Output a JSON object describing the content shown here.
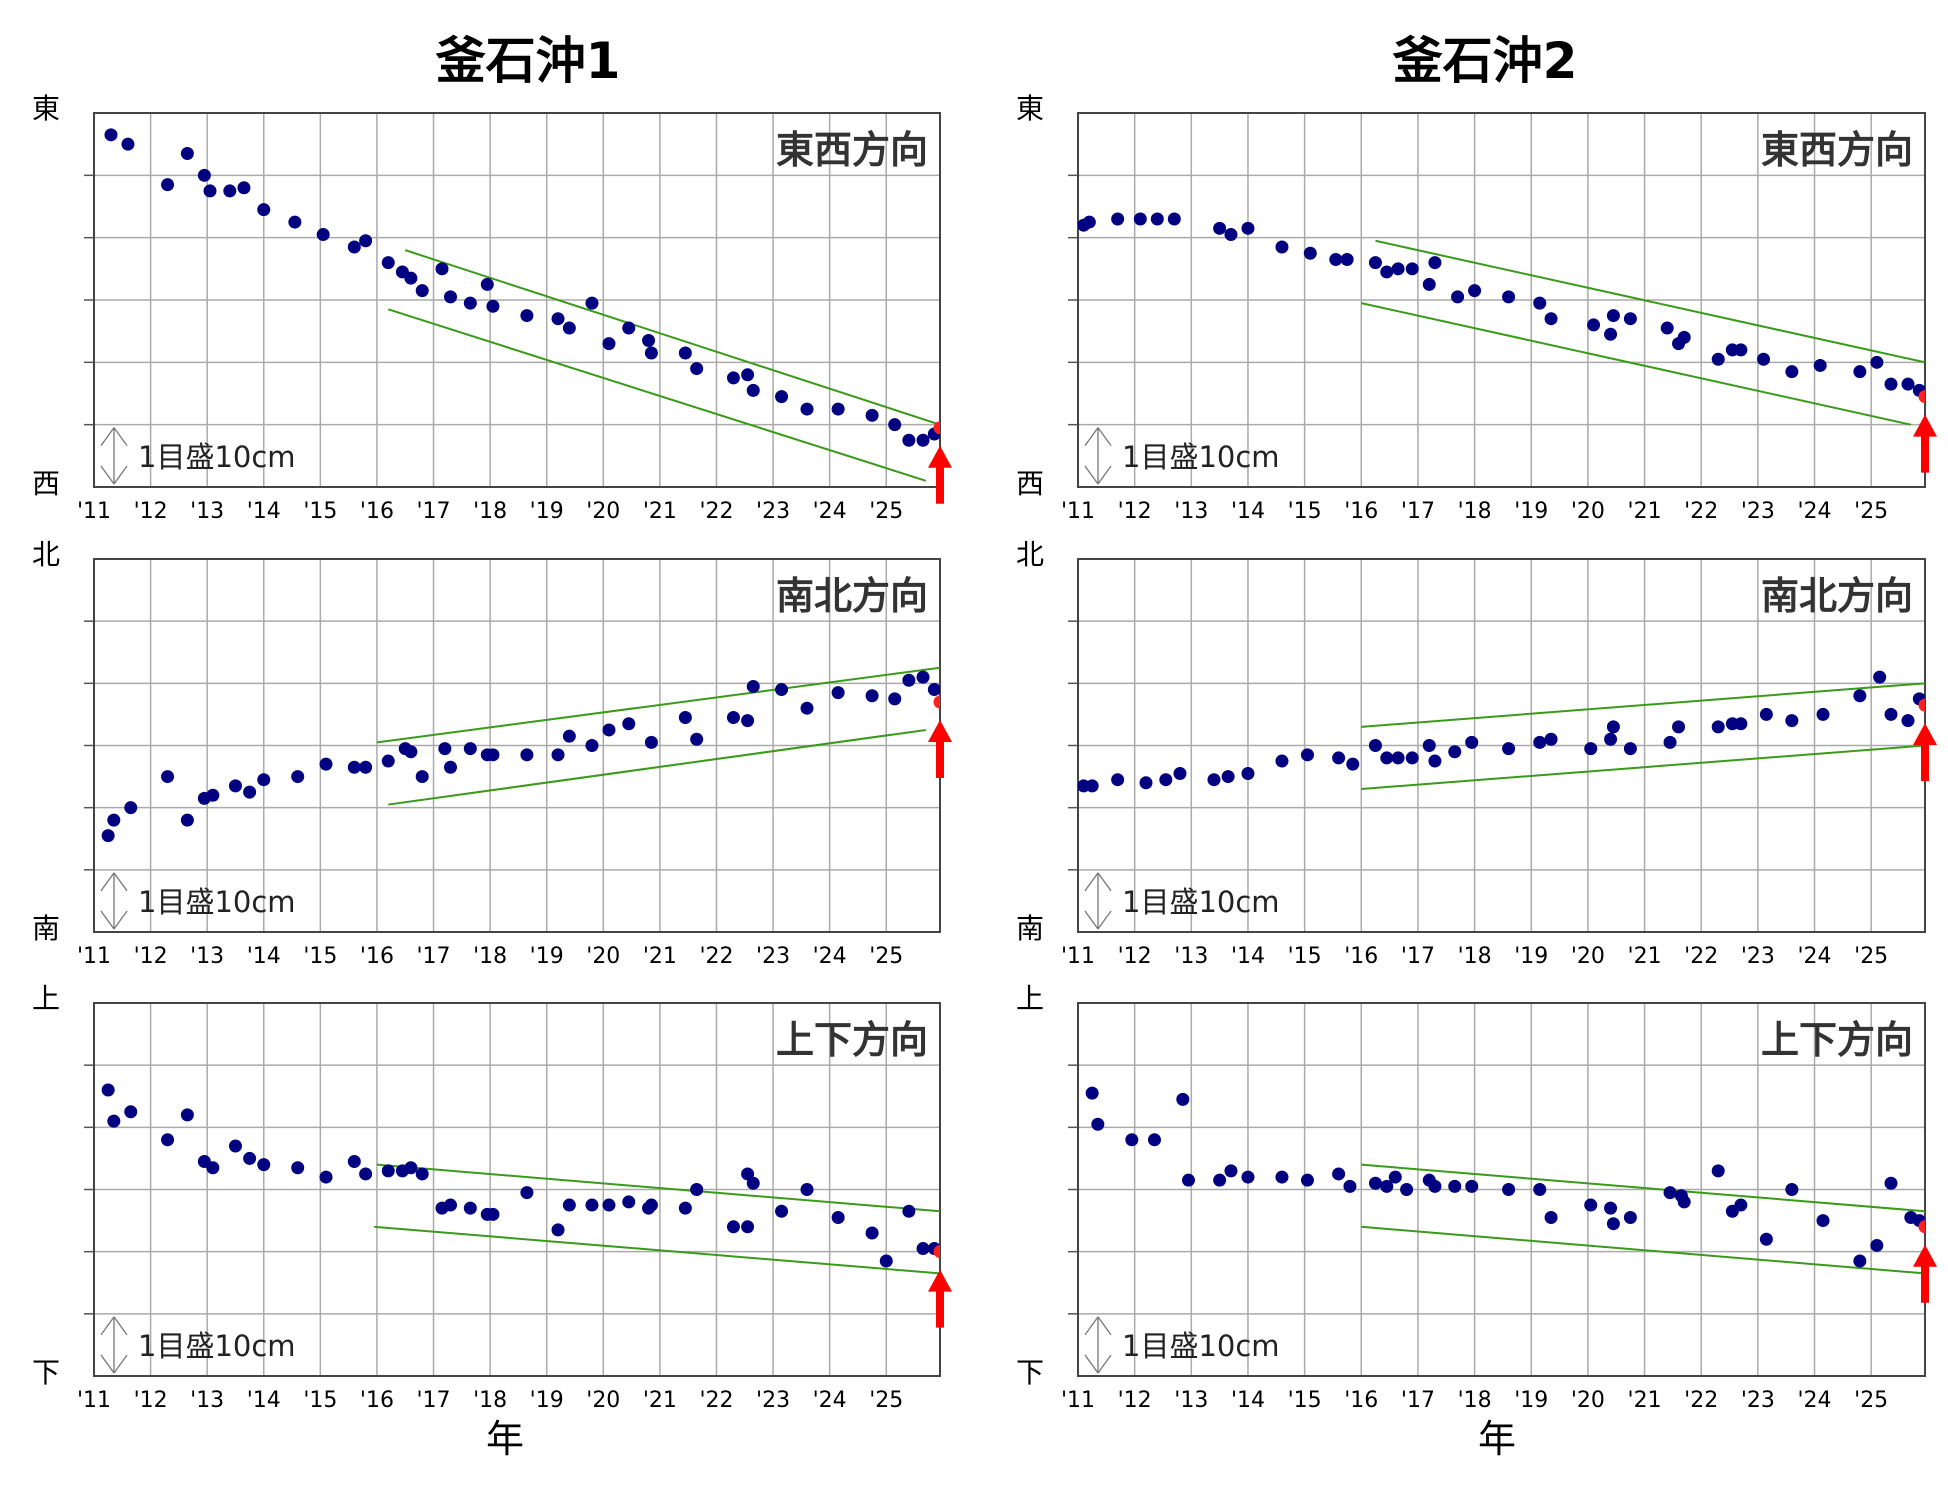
{
  "figure": {
    "year_label": "年",
    "scale_label": "1目盛10cm",
    "colors": {
      "marker": "#000080",
      "latest": "#ff2020",
      "trend": "#3a9a1a",
      "grid": "#aaaaaa",
      "arrow": "#ff0000"
    }
  },
  "chart_data": [
    {
      "type": "scatter",
      "station": "釜石沖1",
      "component": "東西方向",
      "x_ticks": [
        "'11",
        "'12",
        "'13",
        "'14",
        "'15",
        "'16",
        "'17",
        "'18",
        "'19",
        "'20",
        "'21",
        "'22",
        "'23",
        "'24",
        "'25"
      ],
      "x_range": [
        2011.0,
        2025.95
      ],
      "y_range": [
        0,
        6
      ],
      "y_top": "東",
      "y_bottom": "西",
      "points": [
        [
          2011.3,
          5.65
        ],
        [
          2011.6,
          5.5
        ],
        [
          2012.3,
          4.85
        ],
        [
          2012.65,
          5.35
        ],
        [
          2012.95,
          5.0
        ],
        [
          2013.05,
          4.75
        ],
        [
          2013.4,
          4.75
        ],
        [
          2013.65,
          4.8
        ],
        [
          2014.0,
          4.45
        ],
        [
          2014.55,
          4.25
        ],
        [
          2015.05,
          4.05
        ],
        [
          2015.6,
          3.85
        ],
        [
          2015.8,
          3.95
        ],
        [
          2016.2,
          3.6
        ],
        [
          2016.45,
          3.45
        ],
        [
          2016.6,
          3.35
        ],
        [
          2016.8,
          3.15
        ],
        [
          2017.15,
          3.5
        ],
        [
          2017.3,
          3.05
        ],
        [
          2017.65,
          2.95
        ],
        [
          2017.95,
          3.25
        ],
        [
          2018.05,
          2.9
        ],
        [
          2018.65,
          2.75
        ],
        [
          2019.2,
          2.7
        ],
        [
          2019.4,
          2.55
        ],
        [
          2019.8,
          2.95
        ],
        [
          2020.1,
          2.3
        ],
        [
          2020.45,
          2.55
        ],
        [
          2020.8,
          2.35
        ],
        [
          2020.85,
          2.15
        ],
        [
          2021.45,
          2.15
        ],
        [
          2021.65,
          1.9
        ],
        [
          2022.3,
          1.75
        ],
        [
          2022.55,
          1.8
        ],
        [
          2022.65,
          1.55
        ],
        [
          2023.15,
          1.45
        ],
        [
          2023.6,
          1.25
        ],
        [
          2024.15,
          1.25
        ],
        [
          2024.75,
          1.15
        ],
        [
          2025.15,
          1.0
        ],
        [
          2025.4,
          0.75
        ],
        [
          2025.65,
          0.75
        ],
        [
          2025.85,
          0.85
        ]
      ],
      "latest": [
        2025.95,
        0.95
      ],
      "trend_lines": [
        [
          [
            2016.5,
            3.8
          ],
          [
            2025.95,
            1.0
          ]
        ],
        [
          [
            2016.2,
            2.85
          ],
          [
            2025.7,
            0.1
          ]
        ]
      ]
    },
    {
      "type": "scatter",
      "station": "釜石沖2",
      "component": "東西方向",
      "x_ticks": [
        "'11",
        "'12",
        "'13",
        "'14",
        "'15",
        "'16",
        "'17",
        "'18",
        "'19",
        "'20",
        "'21",
        "'22",
        "'23",
        "'24",
        "'25"
      ],
      "x_range": [
        2011.0,
        2025.95
      ],
      "y_range": [
        0,
        6
      ],
      "y_top": "東",
      "y_bottom": "西",
      "points": [
        [
          2011.1,
          4.2
        ],
        [
          2011.2,
          4.25
        ],
        [
          2011.7,
          4.3
        ],
        [
          2012.1,
          4.3
        ],
        [
          2012.4,
          4.3
        ],
        [
          2012.7,
          4.3
        ],
        [
          2013.5,
          4.15
        ],
        [
          2013.7,
          4.05
        ],
        [
          2014.0,
          4.15
        ],
        [
          2014.6,
          3.85
        ],
        [
          2015.1,
          3.75
        ],
        [
          2015.55,
          3.65
        ],
        [
          2015.75,
          3.65
        ],
        [
          2016.25,
          3.6
        ],
        [
          2016.45,
          3.45
        ],
        [
          2016.65,
          3.5
        ],
        [
          2016.9,
          3.5
        ],
        [
          2017.2,
          3.25
        ],
        [
          2017.3,
          3.6
        ],
        [
          2017.7,
          3.05
        ],
        [
          2018.0,
          3.15
        ],
        [
          2018.6,
          3.05
        ],
        [
          2019.15,
          2.95
        ],
        [
          2019.35,
          2.7
        ],
        [
          2020.1,
          2.6
        ],
        [
          2020.4,
          2.45
        ],
        [
          2020.45,
          2.75
        ],
        [
          2020.75,
          2.7
        ],
        [
          2021.4,
          2.55
        ],
        [
          2021.6,
          2.3
        ],
        [
          2021.7,
          2.4
        ],
        [
          2022.3,
          2.05
        ],
        [
          2022.55,
          2.2
        ],
        [
          2022.7,
          2.2
        ],
        [
          2023.1,
          2.05
        ],
        [
          2023.6,
          1.85
        ],
        [
          2024.1,
          1.95
        ],
        [
          2024.8,
          1.85
        ],
        [
          2025.1,
          2.0
        ],
        [
          2025.35,
          1.65
        ],
        [
          2025.65,
          1.65
        ],
        [
          2025.85,
          1.55
        ]
      ],
      "latest": [
        2025.95,
        1.45
      ],
      "trend_lines": [
        [
          [
            2016.25,
            3.95
          ],
          [
            2025.95,
            2.0
          ]
        ],
        [
          [
            2016.0,
            2.95
          ],
          [
            2025.7,
            1.0
          ]
        ]
      ]
    },
    {
      "type": "scatter",
      "station": "釜石沖1",
      "component": "南北方向",
      "x_ticks": [
        "'11",
        "'12",
        "'13",
        "'14",
        "'15",
        "'16",
        "'17",
        "'18",
        "'19",
        "'20",
        "'21",
        "'22",
        "'23",
        "'24",
        "'25"
      ],
      "x_range": [
        2011.0,
        2025.95
      ],
      "y_range": [
        0,
        6
      ],
      "y_top": "北",
      "y_bottom": "南",
      "points": [
        [
          2011.25,
          1.55
        ],
        [
          2011.35,
          1.8
        ],
        [
          2011.65,
          2.0
        ],
        [
          2012.3,
          2.5
        ],
        [
          2012.65,
          1.8
        ],
        [
          2012.95,
          2.15
        ],
        [
          2013.1,
          2.2
        ],
        [
          2013.5,
          2.35
        ],
        [
          2013.75,
          2.25
        ],
        [
          2014.0,
          2.45
        ],
        [
          2014.6,
          2.5
        ],
        [
          2015.1,
          2.7
        ],
        [
          2015.6,
          2.65
        ],
        [
          2015.8,
          2.65
        ],
        [
          2016.2,
          2.75
        ],
        [
          2016.5,
          2.95
        ],
        [
          2016.6,
          2.9
        ],
        [
          2016.8,
          2.5
        ],
        [
          2017.2,
          2.95
        ],
        [
          2017.3,
          2.65
        ],
        [
          2017.65,
          2.95
        ],
        [
          2017.95,
          2.85
        ],
        [
          2018.05,
          2.85
        ],
        [
          2018.65,
          2.85
        ],
        [
          2019.2,
          2.85
        ],
        [
          2019.4,
          3.15
        ],
        [
          2019.8,
          3.0
        ],
        [
          2020.1,
          3.25
        ],
        [
          2020.45,
          3.35
        ],
        [
          2020.85,
          3.05
        ],
        [
          2021.45,
          3.45
        ],
        [
          2021.65,
          3.1
        ],
        [
          2022.3,
          3.45
        ],
        [
          2022.55,
          3.4
        ],
        [
          2022.65,
          3.95
        ],
        [
          2023.15,
          3.9
        ],
        [
          2023.6,
          3.6
        ],
        [
          2024.15,
          3.85
        ],
        [
          2024.75,
          3.8
        ],
        [
          2025.15,
          3.75
        ],
        [
          2025.4,
          4.05
        ],
        [
          2025.65,
          4.1
        ],
        [
          2025.85,
          3.9
        ]
      ],
      "latest": [
        2025.95,
        3.7
      ],
      "trend_lines": [
        [
          [
            2016.0,
            3.05
          ],
          [
            2025.95,
            4.25
          ]
        ],
        [
          [
            2016.2,
            2.05
          ],
          [
            2025.7,
            3.25
          ]
        ]
      ]
    },
    {
      "type": "scatter",
      "station": "釜石沖2",
      "component": "南北方向",
      "x_ticks": [
        "'11",
        "'12",
        "'13",
        "'14",
        "'15",
        "'16",
        "'17",
        "'18",
        "'19",
        "'20",
        "'21",
        "'22",
        "'23",
        "'24",
        "'25"
      ],
      "x_range": [
        2011.0,
        2025.95
      ],
      "y_range": [
        0,
        6
      ],
      "y_top": "北",
      "y_bottom": "南",
      "points": [
        [
          2011.1,
          2.35
        ],
        [
          2011.25,
          2.35
        ],
        [
          2011.7,
          2.45
        ],
        [
          2012.2,
          2.4
        ],
        [
          2012.55,
          2.45
        ],
        [
          2012.8,
          2.55
        ],
        [
          2013.4,
          2.45
        ],
        [
          2013.65,
          2.5
        ],
        [
          2014.0,
          2.55
        ],
        [
          2014.6,
          2.75
        ],
        [
          2015.05,
          2.85
        ],
        [
          2015.6,
          2.8
        ],
        [
          2015.85,
          2.7
        ],
        [
          2016.25,
          3.0
        ],
        [
          2016.45,
          2.8
        ],
        [
          2016.65,
          2.8
        ],
        [
          2016.9,
          2.8
        ],
        [
          2017.2,
          3.0
        ],
        [
          2017.3,
          2.75
        ],
        [
          2017.65,
          2.9
        ],
        [
          2017.95,
          3.05
        ],
        [
          2018.6,
          2.95
        ],
        [
          2019.15,
          3.05
        ],
        [
          2019.35,
          3.1
        ],
        [
          2020.05,
          2.95
        ],
        [
          2020.4,
          3.1
        ],
        [
          2020.45,
          3.3
        ],
        [
          2020.75,
          2.95
        ],
        [
          2021.45,
          3.05
        ],
        [
          2021.6,
          3.3
        ],
        [
          2022.3,
          3.3
        ],
        [
          2022.55,
          3.35
        ],
        [
          2022.7,
          3.35
        ],
        [
          2023.15,
          3.5
        ],
        [
          2023.6,
          3.4
        ],
        [
          2024.15,
          3.5
        ],
        [
          2024.8,
          3.8
        ],
        [
          2025.15,
          4.1
        ],
        [
          2025.35,
          3.5
        ],
        [
          2025.65,
          3.4
        ],
        [
          2025.85,
          3.75
        ]
      ],
      "latest": [
        2025.95,
        3.65
      ],
      "trend_lines": [
        [
          [
            2016.0,
            3.3
          ],
          [
            2025.95,
            4.0
          ]
        ],
        [
          [
            2016.0,
            2.3
          ],
          [
            2025.95,
            3.0
          ]
        ]
      ]
    },
    {
      "type": "scatter",
      "station": "釜石沖1",
      "component": "上下方向",
      "x_ticks": [
        "'11",
        "'12",
        "'13",
        "'14",
        "'15",
        "'16",
        "'17",
        "'18",
        "'19",
        "'20",
        "'21",
        "'22",
        "'23",
        "'24",
        "'25"
      ],
      "x_range": [
        2011.0,
        2025.95
      ],
      "y_range": [
        0,
        6
      ],
      "y_top": "上",
      "y_bottom": "下",
      "points": [
        [
          2011.25,
          4.6
        ],
        [
          2011.35,
          4.1
        ],
        [
          2011.65,
          4.25
        ],
        [
          2012.3,
          3.8
        ],
        [
          2012.65,
          4.2
        ],
        [
          2012.95,
          3.45
        ],
        [
          2013.1,
          3.35
        ],
        [
          2013.5,
          3.7
        ],
        [
          2013.75,
          3.5
        ],
        [
          2014.0,
          3.4
        ],
        [
          2014.6,
          3.35
        ],
        [
          2015.1,
          3.2
        ],
        [
          2015.6,
          3.45
        ],
        [
          2015.8,
          3.25
        ],
        [
          2016.2,
          3.3
        ],
        [
          2016.45,
          3.3
        ],
        [
          2016.6,
          3.35
        ],
        [
          2016.8,
          3.25
        ],
        [
          2017.15,
          2.7
        ],
        [
          2017.3,
          2.75
        ],
        [
          2017.65,
          2.7
        ],
        [
          2017.95,
          2.6
        ],
        [
          2018.05,
          2.6
        ],
        [
          2018.65,
          2.95
        ],
        [
          2019.2,
          2.35
        ],
        [
          2019.4,
          2.75
        ],
        [
          2019.8,
          2.75
        ],
        [
          2020.1,
          2.75
        ],
        [
          2020.45,
          2.8
        ],
        [
          2020.85,
          2.75
        ],
        [
          2020.8,
          2.7
        ],
        [
          2021.45,
          2.7
        ],
        [
          2021.65,
          3.0
        ],
        [
          2022.3,
          2.4
        ],
        [
          2022.55,
          2.4
        ],
        [
          2022.55,
          3.25
        ],
        [
          2022.65,
          3.1
        ],
        [
          2023.15,
          2.65
        ],
        [
          2023.6,
          3.0
        ],
        [
          2024.15,
          2.55
        ],
        [
          2024.75,
          2.3
        ],
        [
          2025.0,
          1.85
        ],
        [
          2025.4,
          2.65
        ],
        [
          2025.65,
          2.05
        ],
        [
          2025.85,
          2.05
        ]
      ],
      "latest": [
        2025.95,
        2.0
      ],
      "trend_lines": [
        [
          [
            2016.0,
            3.4
          ],
          [
            2025.95,
            2.65
          ]
        ],
        [
          [
            2015.95,
            2.4
          ],
          [
            2025.95,
            1.65
          ]
        ]
      ]
    },
    {
      "type": "scatter",
      "station": "釜石沖2",
      "component": "上下方向",
      "x_ticks": [
        "'11",
        "'12",
        "'13",
        "'14",
        "'15",
        "'16",
        "'17",
        "'18",
        "'19",
        "'20",
        "'21",
        "'22",
        "'23",
        "'24",
        "'25"
      ],
      "x_range": [
        2011.0,
        2025.95
      ],
      "y_range": [
        0,
        6
      ],
      "y_top": "上",
      "y_bottom": "下",
      "points": [
        [
          2011.25,
          4.55
        ],
        [
          2011.35,
          4.05
        ],
        [
          2011.95,
          3.8
        ],
        [
          2012.35,
          3.8
        ],
        [
          2012.85,
          4.45
        ],
        [
          2012.95,
          3.15
        ],
        [
          2013.5,
          3.15
        ],
        [
          2013.7,
          3.3
        ],
        [
          2014.0,
          3.2
        ],
        [
          2014.6,
          3.2
        ],
        [
          2015.05,
          3.15
        ],
        [
          2015.6,
          3.25
        ],
        [
          2015.8,
          3.05
        ],
        [
          2016.25,
          3.1
        ],
        [
          2016.45,
          3.05
        ],
        [
          2016.6,
          3.2
        ],
        [
          2016.8,
          3.0
        ],
        [
          2017.2,
          3.15
        ],
        [
          2017.3,
          3.05
        ],
        [
          2017.65,
          3.05
        ],
        [
          2017.95,
          3.05
        ],
        [
          2018.6,
          3.0
        ],
        [
          2019.15,
          3.0
        ],
        [
          2019.35,
          2.55
        ],
        [
          2020.05,
          2.75
        ],
        [
          2020.4,
          2.7
        ],
        [
          2020.45,
          2.45
        ],
        [
          2020.75,
          2.55
        ],
        [
          2021.45,
          2.95
        ],
        [
          2021.65,
          2.9
        ],
        [
          2021.7,
          2.8
        ],
        [
          2022.3,
          3.3
        ],
        [
          2022.55,
          2.65
        ],
        [
          2022.7,
          2.75
        ],
        [
          2023.15,
          2.2
        ],
        [
          2023.6,
          3.0
        ],
        [
          2024.15,
          2.5
        ],
        [
          2024.8,
          1.85
        ],
        [
          2025.1,
          2.1
        ],
        [
          2025.35,
          3.1
        ],
        [
          2025.7,
          2.55
        ],
        [
          2025.85,
          2.5
        ]
      ],
      "latest": [
        2025.95,
        2.4
      ],
      "trend_lines": [
        [
          [
            2016.0,
            3.4
          ],
          [
            2025.95,
            2.65
          ]
        ],
        [
          [
            2016.0,
            2.4
          ],
          [
            2025.95,
            1.65
          ]
        ]
      ]
    }
  ]
}
